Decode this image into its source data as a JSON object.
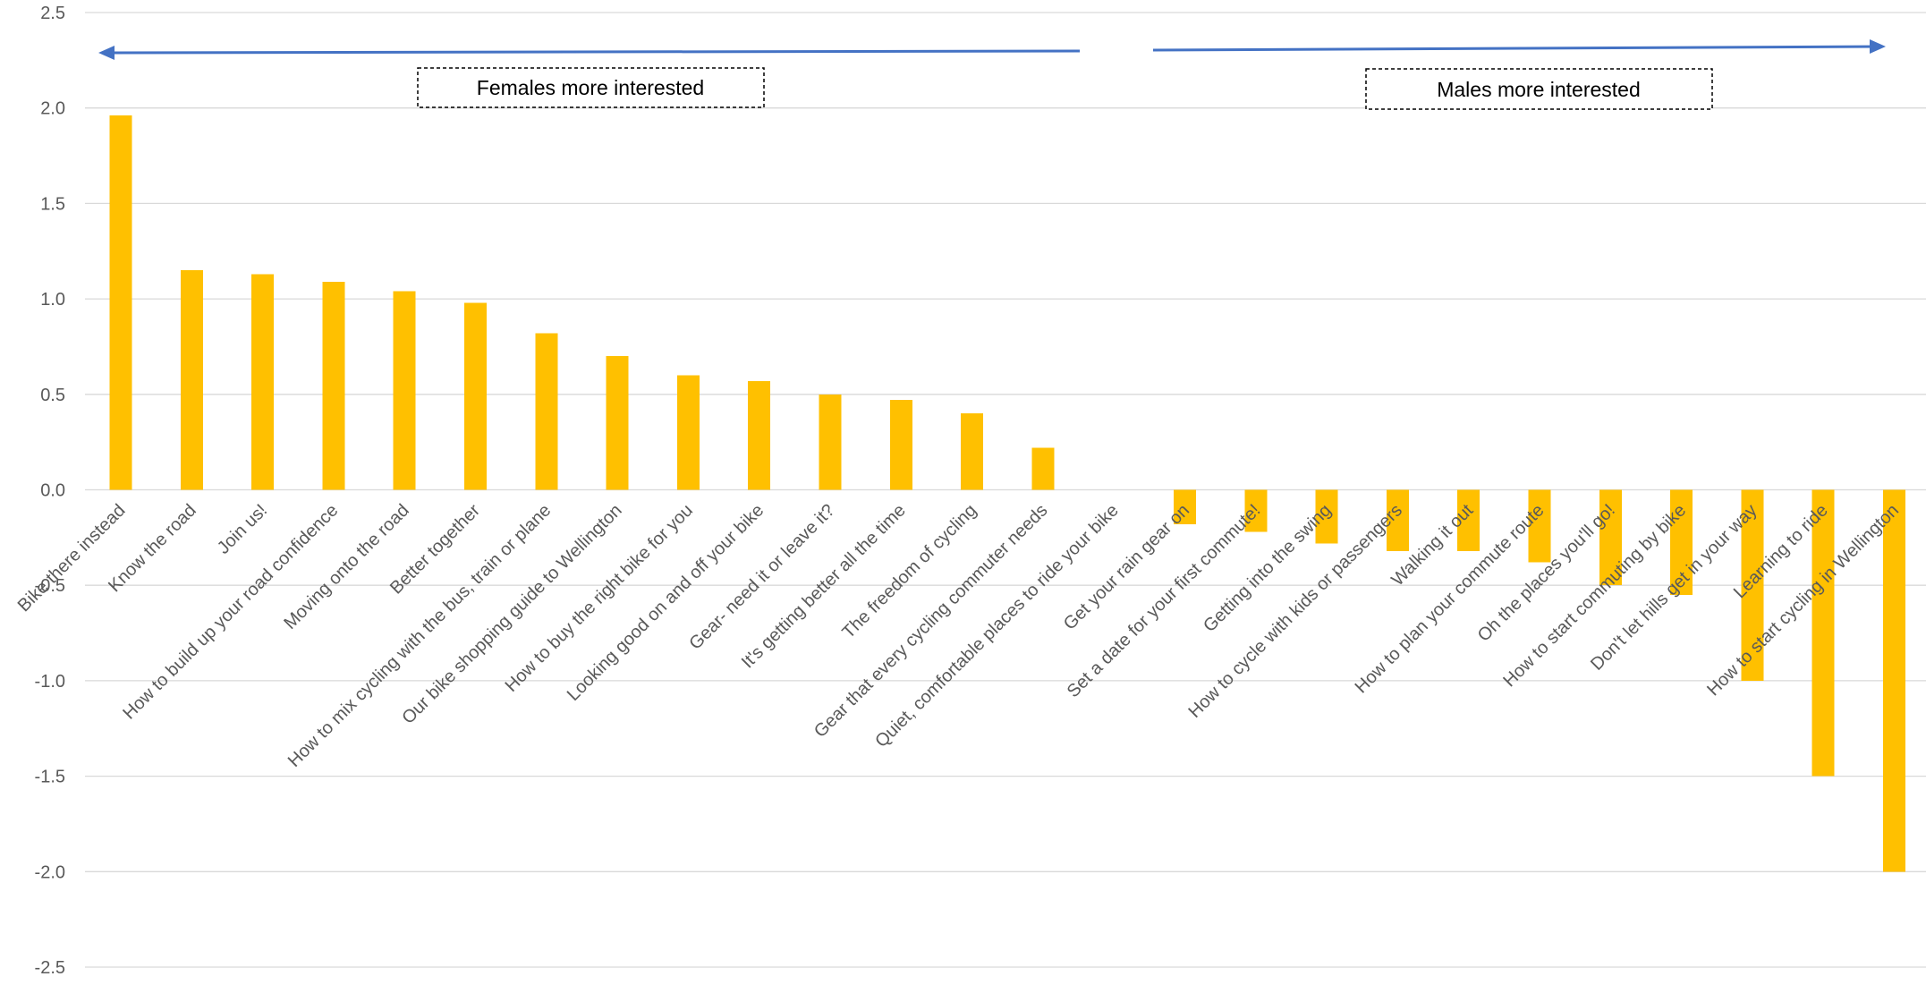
{
  "chart_data": {
    "type": "bar",
    "title": "",
    "xlabel": "",
    "ylabel": "",
    "ylim": [
      -2.5,
      2.5
    ],
    "yticks": [
      "2.5",
      "2.0",
      "1.5",
      "1.0",
      "0.5",
      "0.0",
      "-0.5",
      "-1.0",
      "-1.5",
      "-2.0",
      "-2.5"
    ],
    "grid": true,
    "legend": "none",
    "categories": [
      "Bike there instead",
      "Know the road",
      "Join us!",
      "How to build up your road confidence",
      "Moving onto the road",
      "Better together",
      "How to mix cycling with the bus, train or plane",
      "Our bike shopping guide to Wellington",
      "How to buy the right bike for you",
      "Looking good on and off your bike",
      "Gear- need it or leave it?",
      "It's getting better all the time",
      "The freedom of cycling",
      "Gear that every cycling commuter needs",
      "Quiet, comfortable places to ride your bike",
      "Get your rain gear on",
      "Set a date for your first commute!",
      "Getting into the swing",
      "How to cycle with kids or passengers",
      "Walking it out",
      "How to plan your commute route",
      "Oh the places you'll go!",
      "How to start commuting by bike",
      "Don't let hills get in your way",
      "Learning to ride",
      "How to start cycling in Wellington"
    ],
    "series": [
      {
        "values": [
          1.96,
          1.15,
          1.13,
          1.09,
          1.04,
          0.98,
          0.82,
          0.7,
          0.6,
          0.57,
          0.5,
          0.47,
          0.4,
          0.22,
          0.0,
          -0.18,
          -0.22,
          -0.28,
          -0.32,
          -0.32,
          -0.38,
          -0.5,
          -0.55,
          -1.0,
          -1.5,
          -2.0
        ]
      }
    ],
    "colors": {
      "bar": "#ffc000",
      "arrow": "#4472c4",
      "grid": "#d9d9d9",
      "tick_text": "#595959"
    },
    "annotations": [
      {
        "text": "Females more interested",
        "arrow": "left"
      },
      {
        "text": "Males more interested",
        "arrow": "right"
      }
    ]
  }
}
